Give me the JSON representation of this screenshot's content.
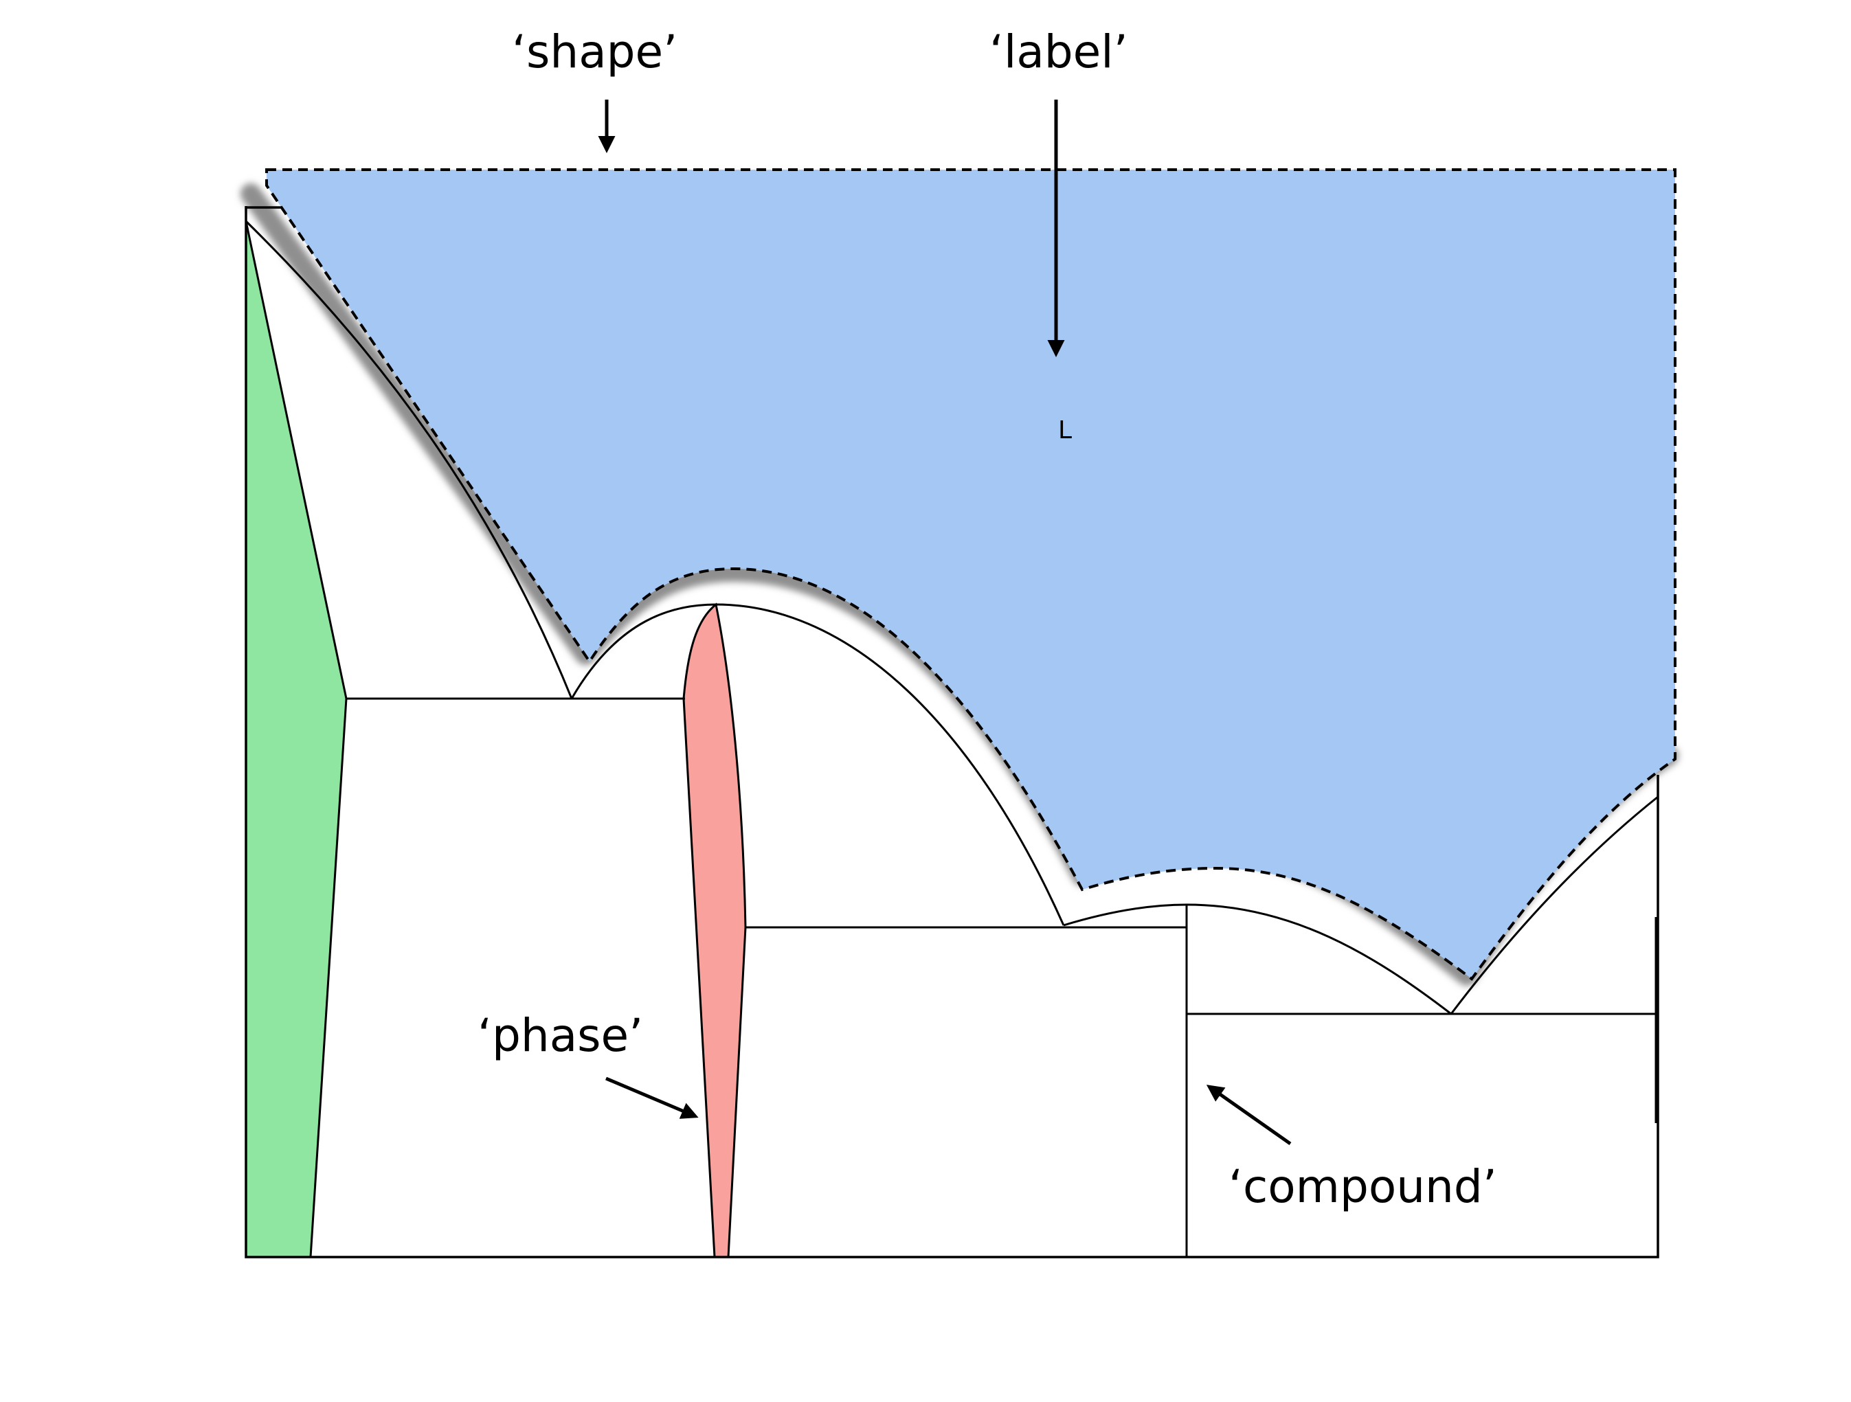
{
  "annotations": {
    "shape": "‘shape’",
    "label": "‘label’",
    "phase": "‘phase’",
    "compound": "‘compound’"
  },
  "regions": {
    "liquid_label": "L"
  },
  "colors": {
    "liquid_fill": "#a4c8f3",
    "solid_solution_left_fill": "#8ee6a0",
    "intermediate_phase_fill": "#f9a29d",
    "highlight_halo": "#8f8f8f",
    "lines": "#000000",
    "background": "#ffffff"
  }
}
